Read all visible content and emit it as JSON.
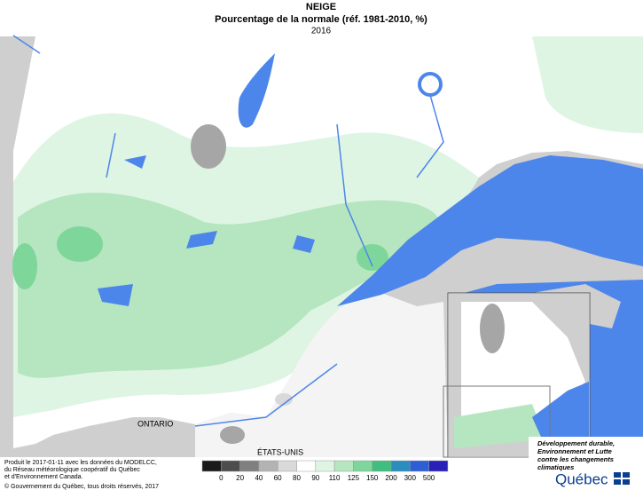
{
  "header": {
    "title": "NEIGE",
    "subtitle": "Pourcentage de la normale (réf. 1981-2010, %)",
    "year": "2016"
  },
  "map": {
    "labels": [
      "ONTARIO",
      "ÉTATS-UNIS"
    ]
  },
  "legend": {
    "breaks": [
      0,
      20,
      40,
      60,
      80,
      90,
      110,
      125,
      150,
      200,
      300,
      500
    ],
    "colors": [
      "#1a1a1a",
      "#4d4d4d",
      "#808080",
      "#b3b3b3",
      "#d9d9d9",
      "#ffffff",
      "#dff5e4",
      "#b5e6c0",
      "#7ed69a",
      "#3fbf7f",
      "#2b8cbe",
      "#2c5fd6",
      "#2a1fb8"
    ]
  },
  "footer": {
    "credits": [
      "Produit le 2017-01-11 avec les données du MODELCC,",
      "du Réseau météorologique coopératif du Québec",
      "et d'Environnement Canada."
    ],
    "copyright": "© Gouvernement du Québec, tous droits réservés, 2017"
  },
  "logo": {
    "lines": [
      "Développement durable,",
      "Environnement et Lutte",
      "contre les changements",
      "climatiques"
    ],
    "name": "Québec"
  }
}
